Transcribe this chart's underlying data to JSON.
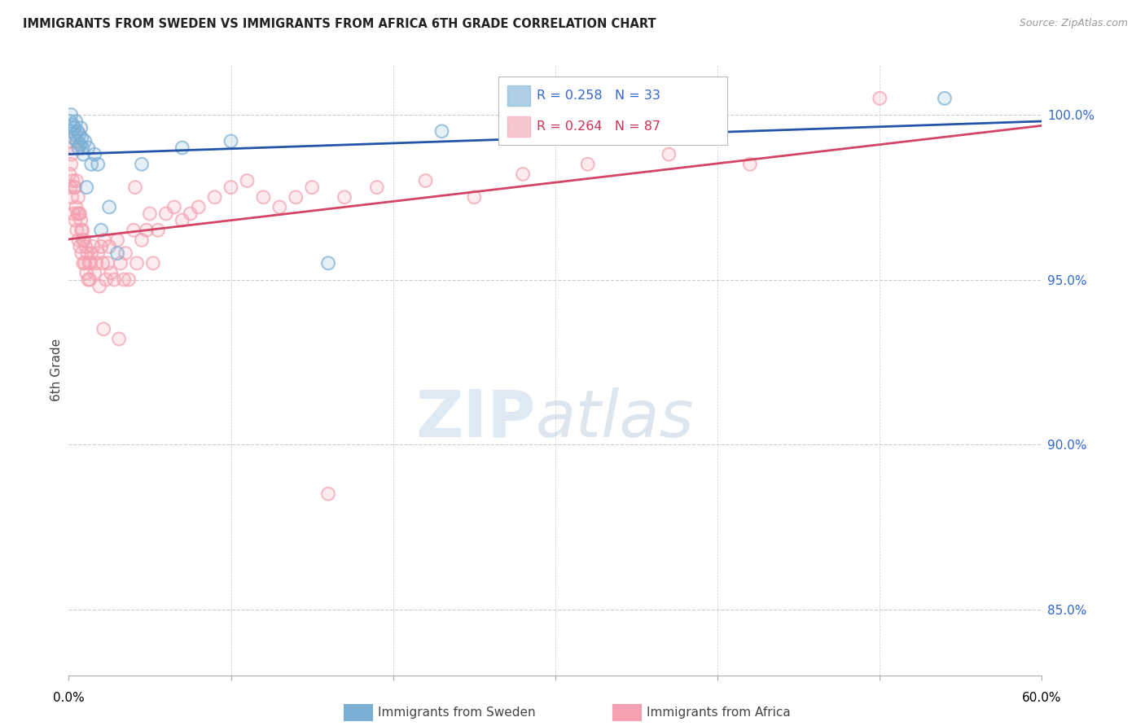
{
  "title": "IMMIGRANTS FROM SWEDEN VS IMMIGRANTS FROM AFRICA 6TH GRADE CORRELATION CHART",
  "source": "Source: ZipAtlas.com",
  "ylabel": "6th Grade",
  "y_ticks": [
    85.0,
    90.0,
    95.0,
    100.0
  ],
  "y_tick_labels": [
    "85.0%",
    "90.0%",
    "95.0%",
    "100.0%"
  ],
  "xlim": [
    0.0,
    60.0
  ],
  "ylim": [
    83.0,
    101.5
  ],
  "legend_blue_r": "R = 0.258",
  "legend_blue_n": "N = 33",
  "legend_pink_r": "R = 0.264",
  "legend_pink_n": "N = 87",
  "blue_color": "#7BAFD4",
  "pink_color": "#F4A0B0",
  "blue_line_color": "#2255AA",
  "pink_line_color": "#D44466",
  "sweden_x": [
    0.1,
    0.15,
    0.2,
    0.25,
    0.3,
    0.35,
    0.4,
    0.45,
    0.5,
    0.55,
    0.6,
    0.65,
    0.7,
    0.75,
    0.8,
    0.85,
    0.9,
    1.0,
    1.1,
    1.2,
    1.4,
    1.6,
    1.8,
    2.0,
    2.5,
    3.0,
    4.5,
    7.0,
    10.0,
    16.0,
    23.0,
    38.0,
    54.0
  ],
  "sweden_y": [
    99.8,
    100.0,
    99.5,
    99.7,
    99.3,
    99.6,
    99.4,
    99.8,
    99.2,
    99.5,
    99.0,
    99.4,
    99.1,
    99.6,
    99.3,
    99.0,
    98.8,
    99.2,
    97.8,
    99.0,
    98.5,
    98.8,
    98.5,
    96.5,
    97.2,
    95.8,
    98.5,
    99.0,
    99.2,
    95.5,
    99.5,
    100.0,
    100.5
  ],
  "africa_x": [
    0.05,
    0.1,
    0.15,
    0.2,
    0.25,
    0.3,
    0.35,
    0.4,
    0.45,
    0.5,
    0.55,
    0.6,
    0.65,
    0.7,
    0.75,
    0.8,
    0.85,
    0.9,
    0.95,
    1.0,
    1.05,
    1.1,
    1.15,
    1.2,
    1.25,
    1.3,
    1.4,
    1.5,
    1.6,
    1.7,
    1.8,
    1.9,
    2.0,
    2.1,
    2.2,
    2.3,
    2.4,
    2.5,
    2.6,
    2.8,
    3.0,
    3.2,
    3.4,
    3.5,
    3.7,
    4.0,
    4.2,
    4.5,
    4.8,
    5.0,
    5.5,
    6.0,
    6.5,
    7.0,
    7.5,
    8.0,
    9.0,
    10.0,
    11.0,
    12.0,
    13.0,
    14.0,
    15.0,
    17.0,
    19.0,
    22.0,
    25.0,
    28.0,
    32.0,
    37.0,
    42.0,
    50.0,
    0.08,
    0.18,
    0.28,
    0.38,
    0.48,
    0.58,
    0.68,
    0.78,
    0.88,
    1.35,
    2.15,
    3.1,
    4.1,
    5.2,
    16.0
  ],
  "africa_y": [
    98.2,
    97.8,
    98.5,
    97.5,
    98.0,
    97.0,
    97.8,
    96.8,
    97.2,
    96.5,
    97.0,
    96.2,
    97.0,
    96.0,
    96.8,
    95.8,
    96.5,
    95.5,
    96.2,
    95.5,
    96.0,
    95.2,
    95.8,
    95.0,
    95.5,
    95.0,
    95.8,
    96.0,
    95.2,
    95.5,
    95.8,
    94.8,
    96.0,
    95.5,
    96.2,
    95.0,
    95.5,
    96.0,
    95.2,
    95.0,
    96.2,
    95.5,
    95.0,
    95.8,
    95.0,
    96.5,
    95.5,
    96.2,
    96.5,
    97.0,
    96.5,
    97.0,
    97.2,
    96.8,
    97.0,
    97.2,
    97.5,
    97.8,
    98.0,
    97.5,
    97.2,
    97.5,
    97.8,
    97.5,
    97.8,
    98.0,
    97.5,
    98.2,
    98.5,
    98.8,
    98.5,
    100.5,
    99.2,
    98.8,
    99.0,
    97.8,
    98.0,
    97.5,
    97.0,
    96.5,
    96.2,
    95.5,
    93.5,
    93.2,
    97.8,
    95.5,
    88.5
  ]
}
